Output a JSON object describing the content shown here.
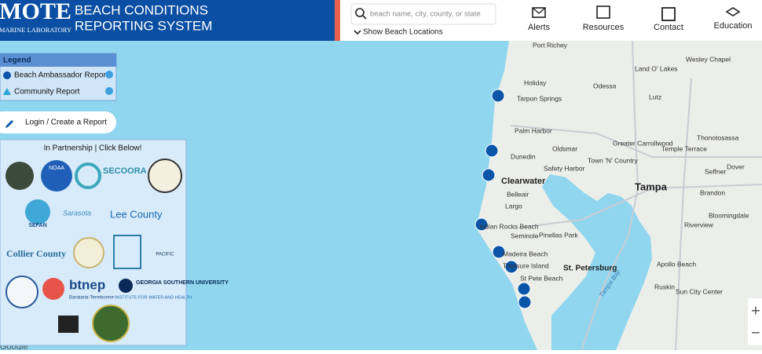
{
  "header": {
    "logo": "MOTE",
    "logo_sub": "MARINE LABORATORY",
    "title_line1": "BEACH CONDITIONS",
    "title_line2": "REPORTING SYSTEM"
  },
  "search": {
    "placeholder": "beach name, city, county, or state",
    "toggle": "Show Beach Locations"
  },
  "nav": [
    "Alerts",
    "Resources",
    "Contact",
    "Education"
  ],
  "legend": {
    "title": "Legend",
    "items": [
      "Beach Ambassador Report",
      "Community Report"
    ]
  },
  "login": "Login / Create a Report",
  "partners": {
    "title": "In Partnership | Click Below!",
    "logos": [
      "NOAA",
      "SECOORA",
      "SEFAN",
      "Sarasota",
      "Lee County",
      "Collier County",
      "btnep",
      "Barataria-Terrebonne",
      "GEORGIA SOUTHERN UNIVERSITY",
      "INSTITUTE FOR WATER AND HEALTH",
      "PACIFIC"
    ]
  },
  "map": {
    "labels": [
      "Port Richey",
      "Holiday",
      "Tarpon Springs",
      "Odessa",
      "Land O' Lakes",
      "Wesley Chapel",
      "Lutz",
      "Palm Harbor",
      "Dunedin",
      "Oldsmar",
      "Safety Harbor",
      "Clearwater",
      "Belleair",
      "Largo",
      "Town 'N' Country",
      "Greater Carrollwood",
      "Temple Terrace",
      "Thonotosassa",
      "Tampa",
      "Seffner",
      "Dover",
      "Brandon",
      "Bloomingdale",
      "Riverview",
      "Indian Rocks Beach",
      "Seminole",
      "Pinellas Park",
      "Madeira Beach",
      "Treasure Island",
      "St. Petersburg",
      "St Pete Beach",
      "Apollo Beach",
      "Ruskin",
      "Sun City Center",
      "Tampa Bay"
    ],
    "attribution": "Google"
  }
}
